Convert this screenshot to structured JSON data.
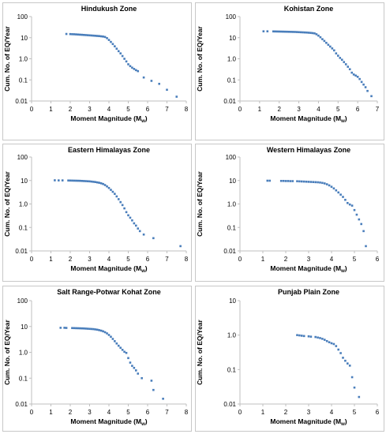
{
  "chart_data": [
    {
      "type": "scatter",
      "title": "Hindukush Zone",
      "xlabel": "Moment Magnitude",
      "xlabel_sub": "w",
      "ylabel": "Cum. No. of EQ/Year",
      "xlim": [
        0,
        8
      ],
      "ylim": [
        0.01,
        100
      ],
      "yscale": "log",
      "xticks": [
        "0",
        "1",
        "2",
        "3",
        "4",
        "5",
        "6",
        "7",
        "8"
      ],
      "yticks": [
        "0.01",
        "0.1",
        "1.0",
        "10",
        "100"
      ],
      "marker_color": "#4a7ebb",
      "series": [
        {
          "x": [
            1.8,
            2.0,
            2.1,
            2.2,
            2.3,
            2.4,
            2.5,
            2.6,
            2.7,
            2.8,
            2.9,
            3.0,
            3.1,
            3.2,
            3.3,
            3.4,
            3.5,
            3.6,
            3.7,
            3.8,
            3.9,
            4.0,
            4.1,
            4.2,
            4.3,
            4.4,
            4.5,
            4.6,
            4.7,
            4.8,
            4.9,
            5.0,
            5.1,
            5.2,
            5.3,
            5.4,
            5.5,
            5.8,
            6.2,
            6.6,
            7.0,
            7.5
          ],
          "y": [
            15,
            14.8,
            14.6,
            14.5,
            14.3,
            14.1,
            13.9,
            13.7,
            13.5,
            13.3,
            13.1,
            12.9,
            12.7,
            12.5,
            12.3,
            12.1,
            11.9,
            11.6,
            11.3,
            10.8,
            9.5,
            7.8,
            6.3,
            5.0,
            3.9,
            3.0,
            2.3,
            1.8,
            1.35,
            1.0,
            0.75,
            0.55,
            0.45,
            0.38,
            0.33,
            0.29,
            0.26,
            0.13,
            0.09,
            0.065,
            0.034,
            0.016
          ]
        }
      ]
    },
    {
      "type": "scatter",
      "title": "Kohistan Zone",
      "xlabel": "Moment Magnitude",
      "xlabel_sub": "w",
      "ylabel": "Cum. No. of EQ/Year",
      "xlim": [
        0,
        7
      ],
      "ylim": [
        0.01,
        100
      ],
      "yscale": "log",
      "xticks": [
        "0",
        "1",
        "2",
        "3",
        "4",
        "5",
        "6",
        "7"
      ],
      "yticks": [
        "0.01",
        "0.1",
        "1.0",
        "10",
        "100"
      ],
      "marker_color": "#4a7ebb",
      "series": [
        {
          "x": [
            1.2,
            1.4,
            1.7,
            1.8,
            1.9,
            2.0,
            2.1,
            2.2,
            2.3,
            2.4,
            2.5,
            2.6,
            2.7,
            2.8,
            2.9,
            3.0,
            3.1,
            3.2,
            3.3,
            3.4,
            3.5,
            3.6,
            3.7,
            3.8,
            3.9,
            4.0,
            4.1,
            4.2,
            4.3,
            4.4,
            4.5,
            4.6,
            4.7,
            4.8,
            4.9,
            5.0,
            5.1,
            5.2,
            5.3,
            5.4,
            5.5,
            5.6,
            5.7,
            5.8,
            5.9,
            6.0,
            6.1,
            6.2,
            6.3,
            6.4,
            6.5,
            6.7
          ],
          "y": [
            20,
            20,
            19.8,
            19.7,
            19.6,
            19.5,
            19.4,
            19.3,
            19.2,
            19.1,
            19.0,
            18.9,
            18.8,
            18.7,
            18.5,
            18.3,
            18.1,
            17.9,
            17.7,
            17.5,
            17.2,
            16.9,
            16.5,
            16.0,
            14.5,
            12.5,
            10.5,
            8.5,
            7.0,
            5.7,
            4.6,
            3.8,
            3.1,
            2.5,
            1.8,
            1.4,
            1.1,
            0.9,
            0.7,
            0.55,
            0.42,
            0.32,
            0.22,
            0.18,
            0.16,
            0.14,
            0.11,
            0.08,
            0.06,
            0.045,
            0.03,
            0.017
          ]
        }
      ]
    },
    {
      "type": "scatter",
      "title": "Eastern Himalayas Zone",
      "xlabel": "Moment Magnitude",
      "xlabel_sub": "w",
      "ylabel": "Cum. No. of EQ/Year",
      "xlim": [
        0,
        8
      ],
      "ylim": [
        0.01,
        100
      ],
      "yscale": "log",
      "xticks": [
        "0",
        "1",
        "2",
        "3",
        "4",
        "5",
        "6",
        "7",
        "8"
      ],
      "yticks": [
        "0.01",
        "0.1",
        "1.0",
        "10",
        "100"
      ],
      "marker_color": "#4a7ebb",
      "series": [
        {
          "x": [
            1.2,
            1.4,
            1.6,
            1.9,
            2.0,
            2.1,
            2.2,
            2.3,
            2.4,
            2.5,
            2.6,
            2.7,
            2.8,
            2.9,
            3.0,
            3.1,
            3.2,
            3.3,
            3.4,
            3.5,
            3.6,
            3.7,
            3.8,
            3.9,
            4.0,
            4.1,
            4.2,
            4.3,
            4.4,
            4.5,
            4.6,
            4.7,
            4.8,
            4.9,
            5.0,
            5.1,
            5.2,
            5.3,
            5.4,
            5.5,
            5.6,
            5.8,
            6.3,
            7.7
          ],
          "y": [
            10.2,
            10.1,
            10.1,
            10.0,
            9.95,
            9.9,
            9.85,
            9.8,
            9.75,
            9.7,
            9.6,
            9.5,
            9.4,
            9.3,
            9.2,
            9.0,
            8.8,
            8.6,
            8.3,
            8.0,
            7.6,
            7.1,
            6.4,
            5.6,
            4.8,
            4.0,
            3.3,
            2.7,
            2.1,
            1.6,
            1.2,
            0.9,
            0.65,
            0.45,
            0.33,
            0.26,
            0.2,
            0.15,
            0.12,
            0.09,
            0.07,
            0.05,
            0.035,
            0.016
          ]
        }
      ]
    },
    {
      "type": "scatter",
      "title": "Western Himalayas Zone",
      "xlabel": "Moment Magnitude",
      "xlabel_sub": "w",
      "ylabel": "Cum. No. of EQ/Year",
      "xlim": [
        0,
        6
      ],
      "ylim": [
        0.01,
        100
      ],
      "yscale": "log",
      "xticks": [
        "0",
        "1",
        "2",
        "3",
        "4",
        "5",
        "6"
      ],
      "yticks": [
        "0.01",
        "0.1",
        "1.0",
        "10",
        "100"
      ],
      "marker_color": "#4a7ebb",
      "series": [
        {
          "x": [
            1.2,
            1.3,
            1.8,
            1.9,
            2.0,
            2.1,
            2.2,
            2.3,
            2.5,
            2.6,
            2.7,
            2.8,
            2.9,
            3.0,
            3.1,
            3.2,
            3.3,
            3.4,
            3.5,
            3.6,
            3.7,
            3.8,
            3.9,
            4.0,
            4.1,
            4.2,
            4.3,
            4.4,
            4.5,
            4.6,
            4.7,
            4.8,
            4.9,
            5.0,
            5.1,
            5.2,
            5.3,
            5.4,
            5.5
          ],
          "y": [
            9.8,
            9.8,
            9.6,
            9.6,
            9.5,
            9.5,
            9.4,
            9.4,
            9.3,
            9.2,
            9.1,
            9.0,
            8.9,
            8.8,
            8.7,
            8.6,
            8.5,
            8.4,
            8.2,
            7.9,
            7.5,
            6.9,
            6.2,
            5.4,
            4.6,
            3.8,
            3.1,
            2.5,
            2.0,
            1.5,
            1.1,
            0.95,
            0.85,
            0.55,
            0.35,
            0.22,
            0.14,
            0.07,
            0.016
          ]
        }
      ]
    },
    {
      "type": "scatter",
      "title": "Salt Range-Potwar Kohat Zone",
      "xlabel": "Moment Magnitude",
      "xlabel_sub": "w",
      "ylabel": "Cum. No. of EQ/Year",
      "xlim": [
        0,
        8
      ],
      "ylim": [
        0.01,
        100
      ],
      "yscale": "log",
      "xticks": [
        "0",
        "1",
        "2",
        "3",
        "4",
        "5",
        "6",
        "7",
        "8"
      ],
      "yticks": [
        "0.01",
        "0.1",
        "1.0",
        "10",
        "100"
      ],
      "marker_color": "#4a7ebb",
      "series": [
        {
          "x": [
            1.5,
            1.7,
            1.8,
            2.1,
            2.2,
            2.3,
            2.4,
            2.5,
            2.6,
            2.7,
            2.8,
            2.9,
            3.0,
            3.1,
            3.2,
            3.3,
            3.4,
            3.5,
            3.6,
            3.7,
            3.8,
            3.9,
            4.0,
            4.1,
            4.2,
            4.3,
            4.4,
            4.5,
            4.6,
            4.7,
            4.8,
            4.9,
            5.0,
            5.1,
            5.2,
            5.3,
            5.4,
            5.5,
            5.7,
            6.2,
            6.3,
            6.8
          ],
          "y": [
            8.9,
            8.9,
            8.8,
            8.7,
            8.65,
            8.6,
            8.55,
            8.5,
            8.45,
            8.4,
            8.3,
            8.2,
            8.1,
            8.0,
            7.9,
            7.7,
            7.5,
            7.2,
            6.9,
            6.5,
            6.0,
            5.4,
            4.7,
            4.0,
            3.3,
            2.7,
            2.2,
            1.8,
            1.5,
            1.25,
            1.05,
            0.95,
            0.6,
            0.4,
            0.3,
            0.25,
            0.2,
            0.15,
            0.1,
            0.08,
            0.035,
            0.016
          ]
        }
      ]
    },
    {
      "type": "scatter",
      "title": "Punjab Plain Zone",
      "xlabel": "Moment Magnitude",
      "xlabel_sub": "w",
      "ylabel": "Cum. No. of EQ/Year",
      "xlim": [
        0,
        6
      ],
      "ylim": [
        0.01,
        10
      ],
      "yscale": "log",
      "xticks": [
        "0",
        "1",
        "2",
        "3",
        "4",
        "5",
        "6"
      ],
      "yticks": [
        "0.01",
        "0.1",
        "1.0",
        "10"
      ],
      "marker_color": "#4a7ebb",
      "series": [
        {
          "x": [
            2.5,
            2.6,
            2.7,
            2.8,
            3.0,
            3.1,
            3.3,
            3.4,
            3.5,
            3.6,
            3.7,
            3.8,
            3.9,
            4.0,
            4.1,
            4.2,
            4.3,
            4.4,
            4.5,
            4.6,
            4.7,
            4.8,
            4.9,
            5.0,
            5.2
          ],
          "y": [
            1.0,
            0.98,
            0.96,
            0.94,
            0.92,
            0.9,
            0.88,
            0.85,
            0.82,
            0.78,
            0.73,
            0.67,
            0.62,
            0.58,
            0.55,
            0.48,
            0.38,
            0.3,
            0.22,
            0.18,
            0.15,
            0.13,
            0.06,
            0.03,
            0.016
          ]
        }
      ]
    }
  ]
}
